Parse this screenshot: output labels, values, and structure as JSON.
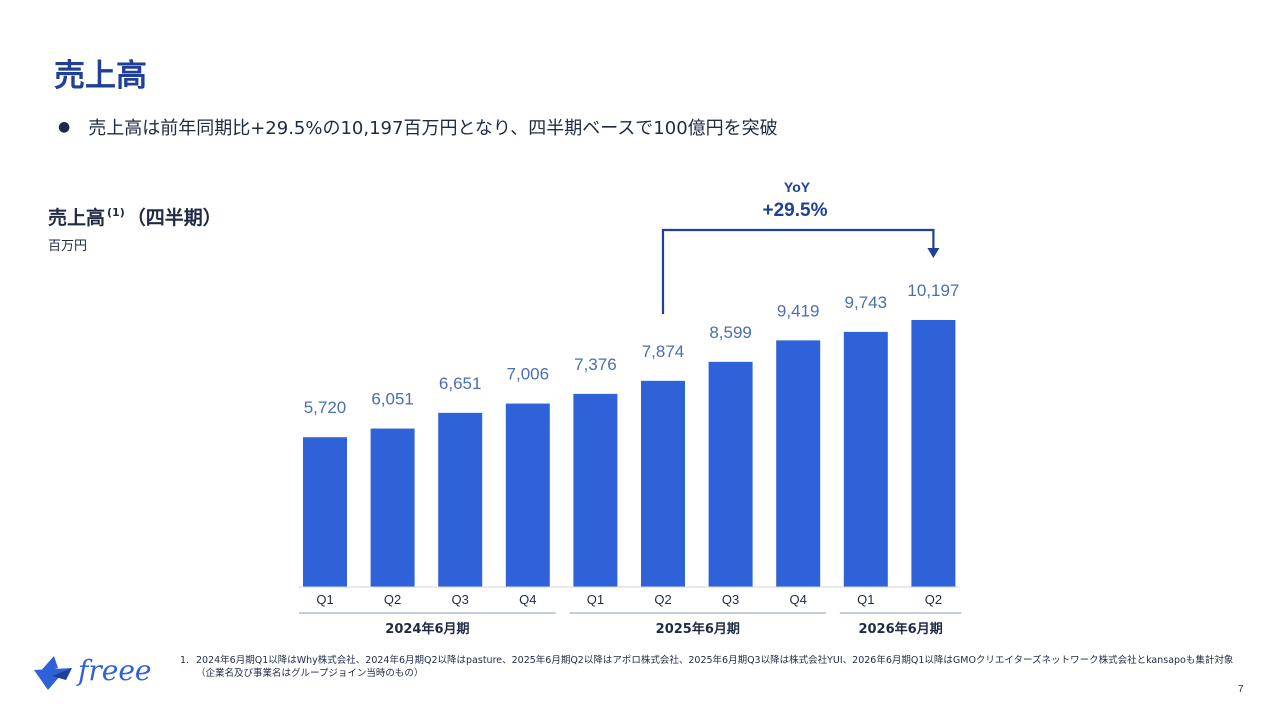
{
  "slide": {
    "title": "売上高",
    "bullet": "売上高は前年同期比+29.5%の10,197百万円となり、四半期ベースで100億円を突破",
    "page_number": "7"
  },
  "chart_header": {
    "title": "売上高",
    "title_sup": "(1)",
    "title_suffix": "（四半期）",
    "unit": "百万円"
  },
  "yoy": {
    "label": "YoY",
    "value": "+29.5%"
  },
  "chart_data": {
    "type": "bar",
    "title": "売上高（四半期）",
    "ylabel": "百万円",
    "categories": [
      "Q1",
      "Q2",
      "Q3",
      "Q4",
      "Q1",
      "Q2",
      "Q3",
      "Q4",
      "Q1",
      "Q2"
    ],
    "values": [
      5720,
      6051,
      6651,
      7006,
      7376,
      7874,
      8599,
      9419,
      9743,
      10197
    ],
    "value_labels": [
      "5,720",
      "6,051",
      "6,651",
      "7,006",
      "7,376",
      "7,874",
      "8,599",
      "9,419",
      "9,743",
      "10,197"
    ],
    "groups": [
      {
        "label": "2024年6月期",
        "start": 0,
        "end": 3
      },
      {
        "label": "2025年6月期",
        "start": 4,
        "end": 7
      },
      {
        "label": "2026年6月期",
        "start": 8,
        "end": 9
      }
    ],
    "ylim": [
      0,
      10197
    ],
    "bar_color": "#2f62d9",
    "annotation": {
      "from_index": 5,
      "to_index": 9,
      "text": "YoY +29.5%"
    }
  },
  "footnote": {
    "number": "1.",
    "text": "2024年6月期Q1以降はWhy株式会社、2024年6月期Q2以降はpasture、2025年6月期Q2以降はアポロ株式会社、2025年6月期Q3以降は株式会社YUI、2026年6月期Q1以降はGMOクリエイターズネットワーク株式会社とkansapoも集計対象（企業名及び事業名はグループジョイン当時のもの）"
  },
  "logo": {
    "text": "freee"
  },
  "colors": {
    "accent": "#1f3f99",
    "bar": "#2f62d9",
    "label": "#4a6fb3"
  }
}
